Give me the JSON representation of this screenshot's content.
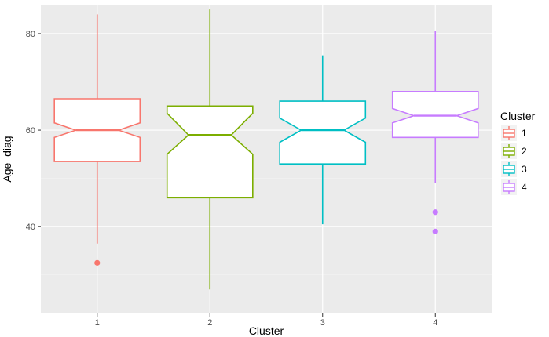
{
  "chart_data": {
    "type": "boxplot",
    "notched": true,
    "title": "",
    "xlabel": "Cluster",
    "ylabel": "Age_diag",
    "categories": [
      "1",
      "2",
      "3",
      "4"
    ],
    "ylim": [
      22,
      86
    ],
    "yticks": [
      40,
      60,
      80
    ],
    "y_minor_ticks": [
      30,
      50,
      70
    ],
    "grid": true,
    "legend": {
      "title": "Cluster",
      "position": "right",
      "entries": [
        "1",
        "2",
        "3",
        "4"
      ]
    },
    "series": [
      {
        "name": "1",
        "color": "#F8766D",
        "whisker_low": 36.5,
        "q1": 53.5,
        "median": 60,
        "q3": 66.5,
        "whisker_high": 84,
        "notch_low": 58.5,
        "notch_high": 61.5,
        "outliers": [
          32.5
        ]
      },
      {
        "name": "2",
        "color": "#7CAE00",
        "whisker_low": 27,
        "q1": 46,
        "median": 59,
        "q3": 65,
        "whisker_high": 85,
        "notch_low": 55,
        "notch_high": 63.5,
        "outliers": []
      },
      {
        "name": "3",
        "color": "#00BFC4",
        "whisker_low": 40.5,
        "q1": 53,
        "median": 60,
        "q3": 66,
        "whisker_high": 75.5,
        "notch_low": 57.5,
        "notch_high": 62.5,
        "outliers": []
      },
      {
        "name": "4",
        "color": "#C77CFF",
        "whisker_low": 49,
        "q1": 58.5,
        "median": 63,
        "q3": 68,
        "whisker_high": 80.5,
        "notch_low": 61.5,
        "notch_high": 64.5,
        "outliers": [
          43,
          39
        ]
      }
    ]
  }
}
